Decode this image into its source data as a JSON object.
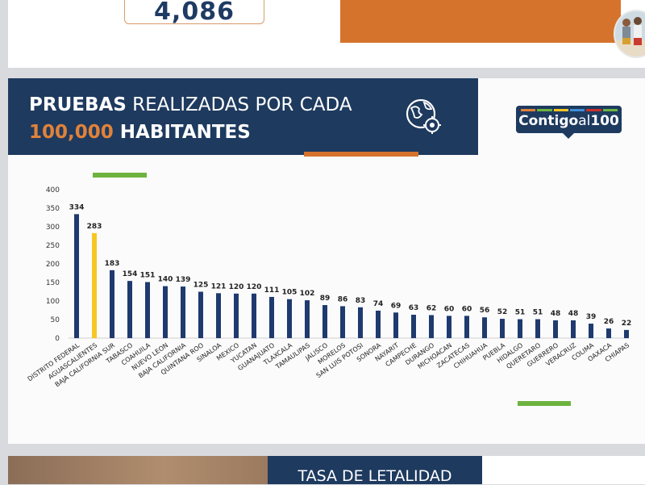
{
  "top": {
    "stat_value": "4,086",
    "colors": {
      "accent_orange": "#d5732d",
      "navy": "#1e3a5f"
    }
  },
  "slide": {
    "title": {
      "word1": "PRUEBAS",
      "word2": " REALIZADAS POR CADA",
      "number": "100,000",
      "word3": " HABITANTES"
    },
    "icon": "globe-virus-icon",
    "logo": {
      "strong": "Contigo",
      "light": "al",
      "number": "100"
    }
  },
  "chart_data": {
    "type": "bar",
    "title": "",
    "xlabel": "",
    "ylabel": "",
    "ylim": [
      0,
      400
    ],
    "yticks": [
      0,
      50,
      100,
      150,
      200,
      250,
      300,
      350,
      400
    ],
    "grid": false,
    "categories": [
      "DISTRITO FEDERAL",
      "AGUASCALIENTES",
      "BAJA CALIFORNIA SUR",
      "TABASCO",
      "COAHUILA",
      "NUEVO LEON",
      "BAJA CALIFORNIA",
      "QUINTANA ROO",
      "SINALOA",
      "MEXICO",
      "YUCATAN",
      "GUANAJUATO",
      "TLAXCALA",
      "TAMAULIPAS",
      "JALISCO",
      "MORELOS",
      "SAN LUIS POTOSI",
      "SONORA",
      "NAYARIT",
      "CAMPECHE",
      "DURANGO",
      "MICHOACAN",
      "ZACATECAS",
      "CHIHUAHUA",
      "PUEBLA",
      "HIDALGO",
      "QUERETARO",
      "GUERRERO",
      "VERACRUZ",
      "COLIMA",
      "OAXACA",
      "CHIAPAS"
    ],
    "values": [
      334,
      283,
      183,
      154,
      151,
      140,
      139,
      125,
      121,
      120,
      120,
      111,
      105,
      102,
      89,
      86,
      83,
      74,
      69,
      63,
      62,
      60,
      60,
      56,
      52,
      51,
      51,
      48,
      48,
      39,
      26,
      22
    ],
    "highlight_index": 1,
    "colors": {
      "bar": "#1e3a6e",
      "highlight": "#f6c623"
    }
  },
  "next": {
    "title": "TASA DE LETALIDAD"
  }
}
